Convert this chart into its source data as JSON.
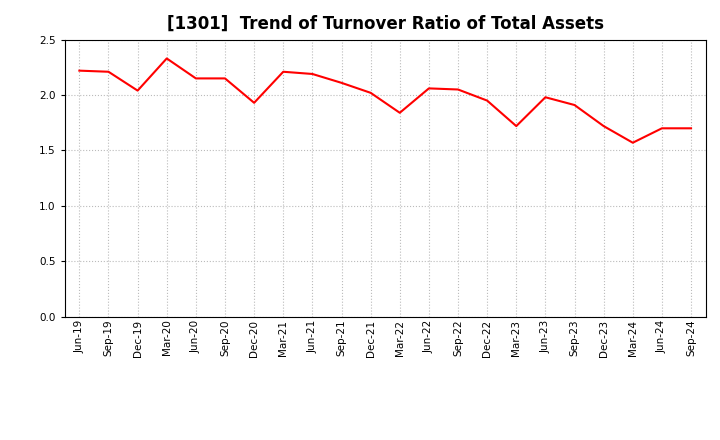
{
  "title": "[1301]  Trend of Turnover Ratio of Total Assets",
  "labels": [
    "Jun-19",
    "Sep-19",
    "Dec-19",
    "Mar-20",
    "Jun-20",
    "Sep-20",
    "Dec-20",
    "Mar-21",
    "Jun-21",
    "Sep-21",
    "Dec-21",
    "Mar-22",
    "Jun-22",
    "Sep-22",
    "Dec-22",
    "Mar-23",
    "Jun-23",
    "Sep-23",
    "Dec-23",
    "Mar-24",
    "Jun-24",
    "Sep-24"
  ],
  "values": [
    2.22,
    2.21,
    2.04,
    2.33,
    2.15,
    2.15,
    1.93,
    2.21,
    2.19,
    2.11,
    2.02,
    1.84,
    2.06,
    2.05,
    1.95,
    1.72,
    1.98,
    1.91,
    1.72,
    1.57,
    1.7,
    1.7
  ],
  "line_color": "#ff0000",
  "line_width": 1.5,
  "ylim": [
    0.0,
    2.5
  ],
  "yticks": [
    0.0,
    0.5,
    1.0,
    1.5,
    2.0,
    2.5
  ],
  "grid_color": "#bbbbbb",
  "background_color": "#ffffff",
  "title_fontsize": 12,
  "tick_fontsize": 7.5
}
